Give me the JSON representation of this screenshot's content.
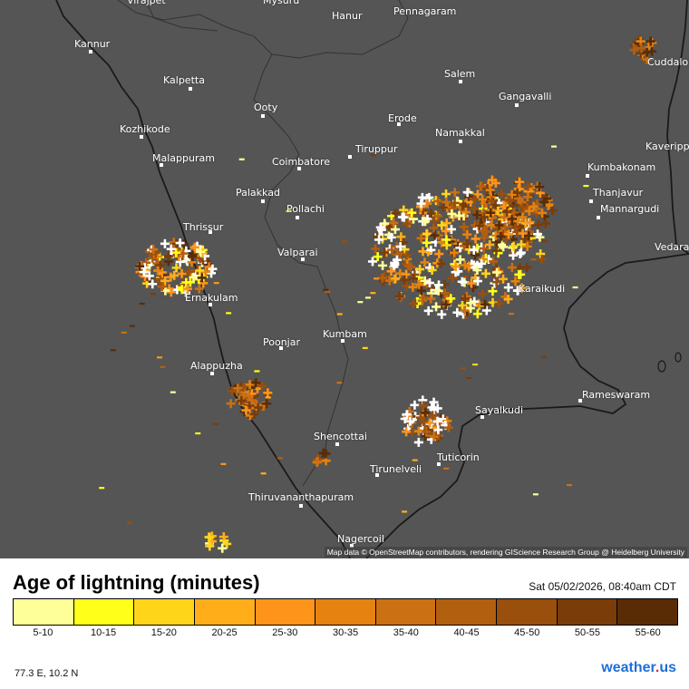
{
  "map": {
    "places": [
      {
        "name": "Virajpet"
      },
      {
        "name": "Mysuru"
      },
      {
        "name": "Hanur"
      },
      {
        "name": "Pennagaram"
      },
      {
        "name": "Kannur"
      },
      {
        "name": "Kalpetta"
      },
      {
        "name": "Salem"
      },
      {
        "name": "Cuddalore"
      },
      {
        "name": "Gangavalli"
      },
      {
        "name": "Ooty"
      },
      {
        "name": "Erode"
      },
      {
        "name": "Kozhikode"
      },
      {
        "name": "Namakkal"
      },
      {
        "name": "Kaverippattinam"
      },
      {
        "name": "Tiruppur"
      },
      {
        "name": "Malappuram"
      },
      {
        "name": "Coimbatore"
      },
      {
        "name": "Kumbakonam"
      },
      {
        "name": "Thanjavur"
      },
      {
        "name": "Palakkad"
      },
      {
        "name": "Mannargudi"
      },
      {
        "name": "Pollachi"
      },
      {
        "name": "Thrissur"
      },
      {
        "name": "Vedaranyam"
      },
      {
        "name": "Valparai"
      },
      {
        "name": "Karaikudi"
      },
      {
        "name": "Ernakulam"
      },
      {
        "name": "Kumbam"
      },
      {
        "name": "Poonjar"
      },
      {
        "name": "Alappuzha"
      },
      {
        "name": "Rameswaram"
      },
      {
        "name": "Sayalkudi"
      },
      {
        "name": "Shencottai"
      },
      {
        "name": "Tuticorin"
      },
      {
        "name": "Tirunelveli"
      },
      {
        "name": "Thiruvananthapuram"
      },
      {
        "name": "Nagercoil"
      }
    ],
    "attribution": "Map data © OpenStreetMap contributors, rendering GIScience Research Group @ Heidelberg University"
  },
  "legend": {
    "title": "Age of lightning (minutes)",
    "timestamp": "Sat 05/02/2026, 08:40am CDT",
    "bins": [
      {
        "label": "5-10",
        "color": "#ffff99"
      },
      {
        "label": "10-15",
        "color": "#ffff1a"
      },
      {
        "label": "15-20",
        "color": "#ffd51a"
      },
      {
        "label": "20-25",
        "color": "#ffae1a"
      },
      {
        "label": "25-30",
        "color": "#ff941a"
      },
      {
        "label": "30-35",
        "color": "#e6820f"
      },
      {
        "label": "35-40",
        "color": "#cc7014"
      },
      {
        "label": "40-45",
        "color": "#b35f10"
      },
      {
        "label": "45-50",
        "color": "#9a4f0c"
      },
      {
        "label": "50-55",
        "color": "#7a3c08"
      },
      {
        "label": "55-60",
        "color": "#5a2c06"
      }
    ],
    "fresh_color": "#ffffff"
  },
  "footer": {
    "coords": "77.3 E, 10.2 N",
    "brand": "weather",
    "brand_dot": ".",
    "brand_tld": "us"
  }
}
